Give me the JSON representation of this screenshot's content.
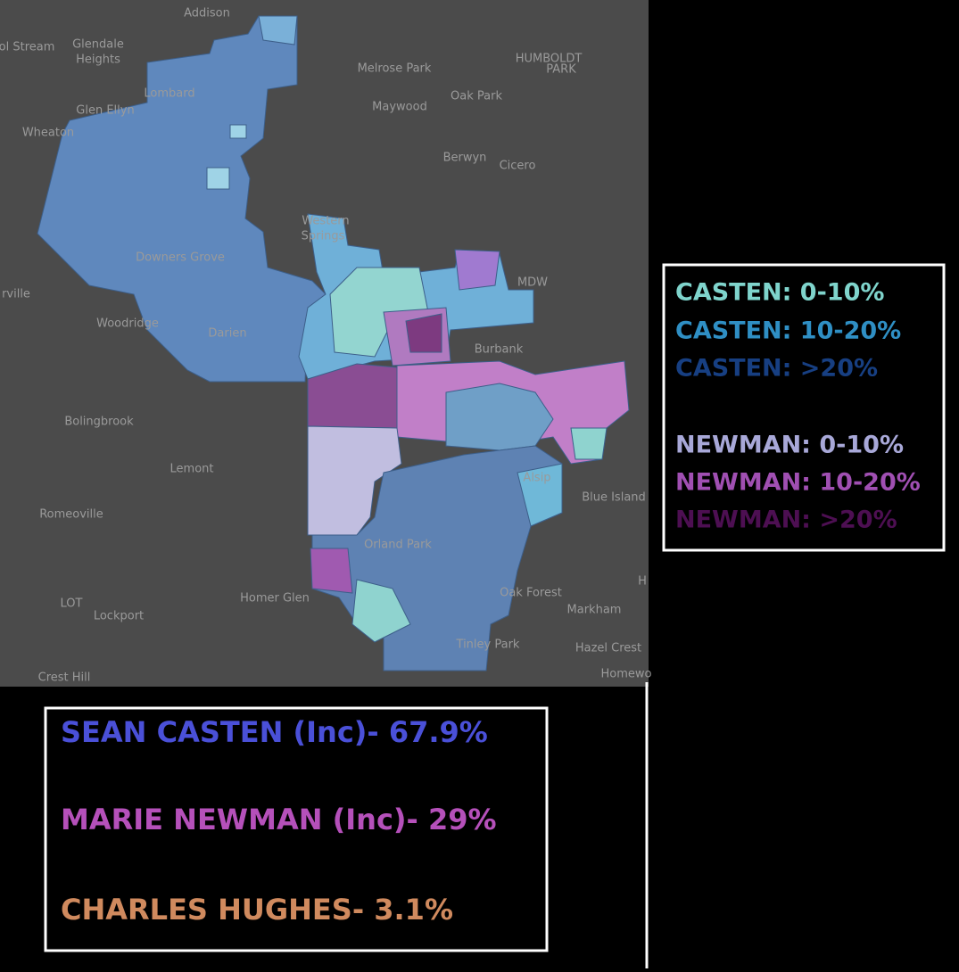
{
  "map": {
    "labels": [
      "Addison",
      "ol Stream",
      "Glendale",
      "Heights",
      "Melrose Park",
      "HUMBOLDT",
      "PARK",
      "Lombard",
      "Oak Park",
      "Glen Ellyn",
      "Maywood",
      "Wheaton",
      "Berwyn",
      "Cicero",
      "Western",
      "Springs",
      "Downers Grove",
      "MDW",
      "rville",
      "Woodridge",
      "Darien",
      "Burbank",
      "Bolingbrook",
      "Lemont",
      "Alsip",
      "Blue Island",
      "Romeoville",
      "Orland Park",
      "LOT",
      "Homer Glen",
      "Oak Forest",
      "Markham",
      "Lockport",
      "Tinley Park",
      "Hazel Crest",
      "Crest Hill",
      "Homewo",
      "H"
    ]
  },
  "legend": {
    "entries": [
      {
        "label": "CASTEN: 0-10%",
        "color": "#7fd4cc"
      },
      {
        "label": "CASTEN: 10-20%",
        "color": "#2f8fc4"
      },
      {
        "label": "CASTEN: >20%",
        "color": "#173f82"
      },
      {
        "label": "NEWMAN: 0-10%",
        "color": "#a8a8d8"
      },
      {
        "label": "NEWMAN: 10-20%",
        "color": "#a04fb2"
      },
      {
        "label": "NEWMAN: >20%",
        "color": "#4d0f52"
      }
    ]
  },
  "results": {
    "rows": [
      {
        "text": "SEAN CASTEN (Inc)- 67.9%",
        "color": "#4a50d8"
      },
      {
        "text": "MARIE NEWMAN (Inc)- 29%",
        "color": "#b550ba"
      },
      {
        "text": "CHARLES HUGHES- 3.1%",
        "color": "#d08a5e"
      }
    ]
  }
}
